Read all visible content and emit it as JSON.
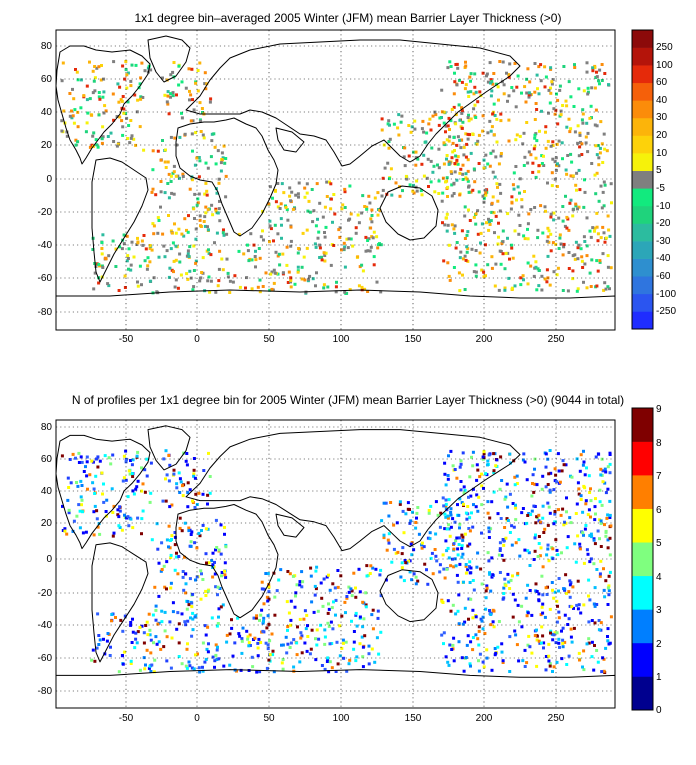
{
  "panels": [
    {
      "title": "1x1 degree bin–averaged 2005 Winter (JFM) mean Barrier Layer Thickness (>0)",
      "xticks": [
        "-50",
        "0",
        "50",
        "100",
        "150",
        "200",
        "250"
      ],
      "yticks": [
        "80",
        "60",
        "40",
        "20",
        "0",
        "-20",
        "-40",
        "-60",
        "-80"
      ],
      "colorbar_labels": [
        "250",
        "100",
        "60",
        "40",
        "30",
        "20",
        "10",
        "5",
        "-5",
        "-10",
        "-20",
        "-30",
        "-40",
        "-60",
        "-100",
        "-250"
      ],
      "colorbar_colors": [
        "#1f2dff",
        "#2b55f0",
        "#2f75df",
        "#2e8fcf",
        "#2ca6b8",
        "#2cbc9f",
        "#1fd37c",
        "#12ea7e",
        "#7f7f7f",
        "#f6f20a",
        "#fdd20a",
        "#fcb40a",
        "#fb8c0a",
        "#f5600a",
        "#e52a0a",
        "#b4140a",
        "#8c0a0a"
      ]
    },
    {
      "title": "N of profiles per 1x1 degree bin for 2005 Winter (JFM) mean Barrier Layer Thickness (>0) (9044 in total)",
      "xticks": [
        "-50",
        "0",
        "50",
        "100",
        "150",
        "200",
        "250"
      ],
      "yticks": [
        "80",
        "60",
        "40",
        "20",
        "0",
        "-20",
        "-40",
        "-60",
        "-80"
      ],
      "colorbar_labels": [
        "9",
        "8",
        "7",
        "6",
        "5",
        "4",
        "3",
        "2",
        "1",
        "0"
      ],
      "colorbar_colors": [
        "#00008f",
        "#0000ff",
        "#007fff",
        "#00ffff",
        "#7fff7f",
        "#ffff00",
        "#ff7f00",
        "#ff0000",
        "#7f0000"
      ]
    }
  ]
}
